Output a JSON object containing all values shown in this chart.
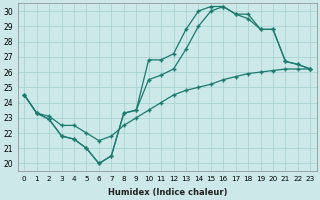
{
  "xlabel": "Humidex (Indice chaleur)",
  "ylabel": "",
  "bg_color": "#cce8e8",
  "grid_color": "#aad4d4",
  "line_color": "#1a7a6e",
  "xlim": [
    -0.5,
    23.5
  ],
  "ylim": [
    19.5,
    30.5
  ],
  "xticks": [
    0,
    1,
    2,
    3,
    4,
    5,
    6,
    7,
    8,
    9,
    10,
    11,
    12,
    13,
    14,
    15,
    16,
    17,
    18,
    19,
    20,
    21,
    22,
    23
  ],
  "yticks": [
    20,
    21,
    22,
    23,
    24,
    25,
    26,
    27,
    28,
    29,
    30
  ],
  "line_straight_x": [
    0,
    1,
    2,
    3,
    4,
    5,
    6,
    7,
    8,
    9,
    10,
    11,
    12,
    13,
    14,
    15,
    16,
    17,
    18,
    19,
    20,
    21,
    22,
    23
  ],
  "line_straight_y": [
    24.5,
    23.3,
    23.1,
    22.5,
    22.5,
    22.0,
    21.5,
    21.8,
    22.5,
    23.0,
    23.5,
    24.0,
    24.5,
    24.8,
    25.0,
    25.2,
    25.5,
    25.7,
    25.9,
    26.0,
    26.1,
    26.2,
    26.2,
    26.2
  ],
  "line_curved_x": [
    0,
    1,
    2,
    3,
    4,
    5,
    6,
    7,
    8,
    9,
    10,
    11,
    12,
    13,
    14,
    15,
    16,
    17,
    18,
    19,
    20,
    21,
    22,
    23
  ],
  "line_curved_y": [
    24.5,
    23.3,
    22.9,
    21.8,
    21.6,
    21.0,
    20.0,
    20.5,
    23.3,
    23.5,
    26.8,
    26.8,
    27.2,
    28.8,
    30.0,
    30.3,
    30.3,
    29.8,
    29.8,
    28.8,
    28.8,
    26.7,
    26.5,
    26.2
  ],
  "line_mid_x": [
    0,
    1,
    2,
    3,
    4,
    5,
    6,
    7,
    8,
    9,
    10,
    11,
    12,
    13,
    14,
    15,
    16,
    17,
    18,
    19,
    20,
    21,
    22,
    23
  ],
  "line_mid_y": [
    24.5,
    23.3,
    22.9,
    21.8,
    21.6,
    21.0,
    20.0,
    20.5,
    23.3,
    23.5,
    25.5,
    25.8,
    26.2,
    27.5,
    29.0,
    30.0,
    30.3,
    29.8,
    29.5,
    28.8,
    28.8,
    26.7,
    26.5,
    26.2
  ]
}
